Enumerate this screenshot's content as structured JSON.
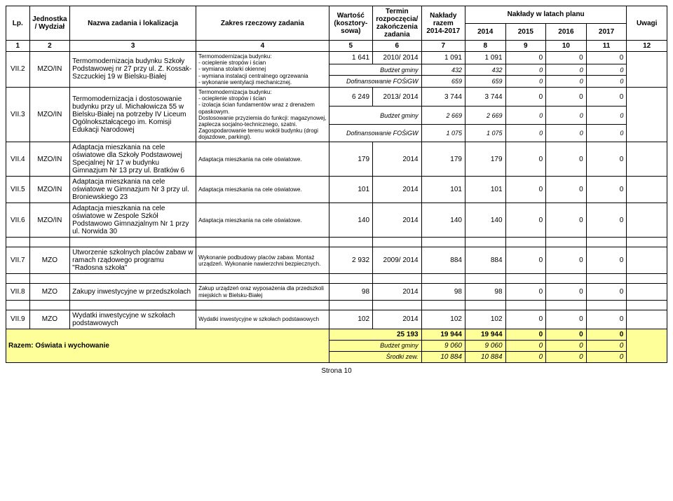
{
  "header": {
    "lp": "Lp.",
    "jednostka": "Jednostka / Wydział",
    "nazwa": "Nazwa zadania i lokalizacja",
    "zakres": "Zakres rzeczowy zadania",
    "wartosc": "Wartość (kosztory-sowa)",
    "termin": "Termin rozpoczęcia/ zakończenia zadania",
    "naklady_razem": "Nakłady razem 2014-2017",
    "naklady_plan": "Nakłady w latach planu",
    "y2014": "2014",
    "y2015": "2015",
    "y2016": "2016",
    "y2017": "2017",
    "uwagi": "Uwagi",
    "n1": "1",
    "n2": "2",
    "n3": "3",
    "n4": "4",
    "n5": "5",
    "n6": "6",
    "n7": "7",
    "n8": "8",
    "n9": "9",
    "n10": "10",
    "n11": "11",
    "n12": "12"
  },
  "rows": [
    {
      "lp": "VII.2",
      "wydz": "MZO/IN",
      "nazwa": "Termomodernizacja budynku Szkoły Podstawowej nr 27 przy ul. Z. Kossak-Szczuckiej 19 w Bielsku-Białej",
      "zakres": "Termomodernizacja budynku:\n- ocieplenie stropów i ścian\n- wymiana stolarki okiennej\n- wymiana instalacji centralnego ogrzewania\n- wykonanie wentylacji mechanicznej.",
      "lines": [
        {
          "wart": "1 641",
          "termin": "2010/ 2014",
          "razem": "1 091",
          "y14": "1 091",
          "y15": "0",
          "y16": "0",
          "y17": "0"
        },
        {
          "label": "Budżet gminy",
          "razem": "432",
          "y14": "432",
          "y15": "0",
          "y16": "0",
          "y17": "0"
        },
        {
          "label": "Dofinansowanie FOŚiGW",
          "razem": "659",
          "y14": "659",
          "y15": "0",
          "y16": "0",
          "y17": "0"
        }
      ]
    },
    {
      "lp": "VII.3",
      "wydz": "MZO/IN",
      "nazwa": "Termomodernizacja i dostosowanie budynku przy ul. Michałowicza 55 w Bielsku-Białej na potrzeby IV Liceum Ogólnokształcącego im. Komisji Edukacji Narodowej",
      "zakres": "Termomodernizacja budynku:\n- ocieplenie stropów i ścian\n- izolacja ścian fundamentów wraz z drenażem opaskowym.\nDostosowanie przyziemia do funkcji: magazynowej, zaplecza socjalno-technicznego, szatni. Zagospodarowanie terenu wokół budynku (drogi dojazdowe, parkingi).",
      "lines": [
        {
          "wart": "6 249",
          "termin": "2013/ 2014",
          "razem": "3 744",
          "y14": "3 744",
          "y15": "0",
          "y16": "0",
          "y17": "0"
        },
        {
          "label": "Budżet gminy",
          "razem": "2 669",
          "y14": "2 669",
          "y15": "0",
          "y16": "0",
          "y17": "0"
        },
        {
          "label": "Dofinansowanie FOŚiGW",
          "razem": "1 075",
          "y14": "1 075",
          "y15": "0",
          "y16": "0",
          "y17": "0"
        }
      ]
    },
    {
      "lp": "VII.4",
      "wydz": "MZO/IN",
      "nazwa": "Adaptacja mieszkania na cele oświatowe dla Szkoły Podstawowej Specjalnej Nr 17 w budynku Gimnazjum Nr 13 przy ul. Bratków 6",
      "zakres": "Adaptacja mieszkania na cele oświatowe.",
      "lines": [
        {
          "wart": "179",
          "termin": "2014",
          "razem": "179",
          "y14": "179",
          "y15": "0",
          "y16": "0",
          "y17": "0"
        }
      ]
    },
    {
      "lp": "VII.5",
      "wydz": "MZO/IN",
      "nazwa": "Adaptacja mieszkania na cele oświatowe w Gimnazjum Nr 3 przy ul. Broniewskiego 23",
      "zakres": "Adaptacja mieszkania na cele oświatowe.",
      "lines": [
        {
          "wart": "101",
          "termin": "2014",
          "razem": "101",
          "y14": "101",
          "y15": "0",
          "y16": "0",
          "y17": "0"
        }
      ]
    },
    {
      "lp": "VII.6",
      "wydz": "MZO/IN",
      "nazwa": "Adaptacja mieszkania na cele oświatowe w Zespole Szkół Podstawowo Gimnazjalnym Nr 1 przy ul. Norwida 30",
      "zakres": "Adaptacja mieszkania na cele oświatowe.",
      "lines": [
        {
          "wart": "140",
          "termin": "2014",
          "razem": "140",
          "y14": "140",
          "y15": "0",
          "y16": "0",
          "y17": "0"
        }
      ]
    },
    {
      "lp": "VII.7",
      "wydz": "MZO",
      "nazwa": "Utworzenie szkolnych placów zabaw w ramach rządowego programu \"Radosna szkoła\"",
      "zakres": "Wykonanie podbudowy placów zabaw. Montaż urządzeń. Wykonanie nawierzchni bezpiecznych.",
      "lines": [
        {
          "wart": "2 932",
          "termin": "2009/ 2014",
          "razem": "884",
          "y14": "884",
          "y15": "0",
          "y16": "0",
          "y17": "0"
        }
      ]
    },
    {
      "lp": "VII.8",
      "wydz": "MZO",
      "nazwa": "Zakupy inwestycyjne w przedszkolach",
      "zakres": "Zakup urządzeń oraz wyposażenia dla przedszkoli miejskich w Bielsku-Białej",
      "lines": [
        {
          "wart": "98",
          "termin": "2014",
          "razem": "98",
          "y14": "98",
          "y15": "0",
          "y16": "0",
          "y17": "0"
        }
      ]
    },
    {
      "lp": "VII.9",
      "wydz": "MZO",
      "nazwa": "Wydatki inwestycyjne w szkołach podstawowych",
      "zakres": "Wydatki inwestycyjne w szkołach podstawowych",
      "lines": [
        {
          "wart": "102",
          "termin": "2014",
          "razem": "102",
          "y14": "102",
          "y15": "0",
          "y16": "0",
          "y17": "0"
        }
      ]
    }
  ],
  "summary": {
    "title": "Razem: Oświata i wychowanie",
    "total": {
      "wart": "25 193",
      "razem": "19 944",
      "y14": "19 944",
      "y15": "0",
      "y16": "0",
      "y17": "0"
    },
    "sub": [
      {
        "label": "Budżet gminy",
        "razem": "9 060",
        "y14": "9 060",
        "y15": "0",
        "y16": "0",
        "y17": "0"
      },
      {
        "label": "Środki zew.",
        "razem": "10 884",
        "y14": "10 884",
        "y15": "0",
        "y16": "0",
        "y17": "0"
      }
    ]
  },
  "footer": "Strona 10"
}
